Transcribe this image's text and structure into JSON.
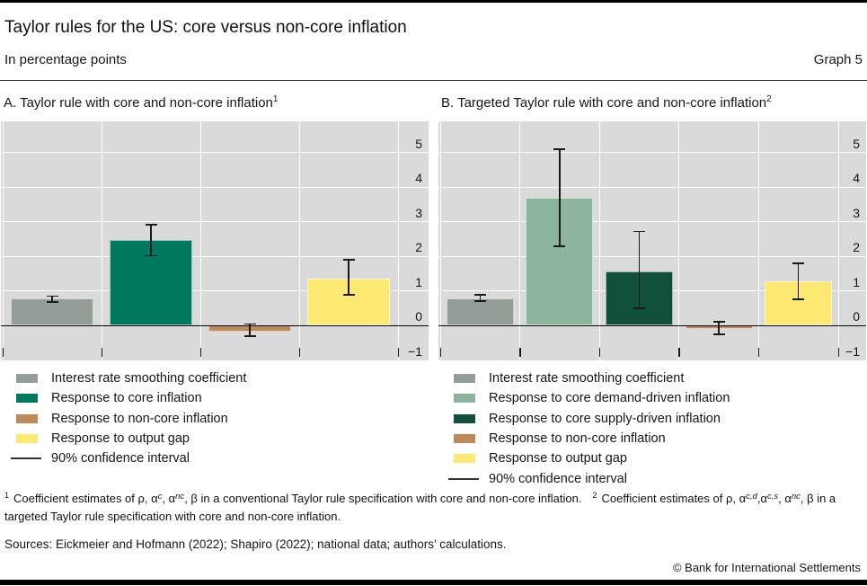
{
  "page": {
    "title": "Taylor rules for the US: core versus non-core inflation",
    "subtitle": "In percentage points",
    "graph_label": "Graph 5",
    "sources": "Sources: Eickmeier and Hofmann (2022); Shapiro (2022); national data; authors’ calculations.",
    "copyright": "© Bank for International Settlements"
  },
  "chart_data": [
    {
      "type": "bar",
      "panel": "A",
      "title": "A. Taylor rule with core and non-core inflation",
      "title_sup": "1",
      "ylabel": "percentage points",
      "ylim": [
        -1,
        5.9
      ],
      "yticks": [
        5,
        4,
        3,
        2,
        1,
        0,
        -1
      ],
      "ytick_labels": [
        "5",
        "4",
        "3",
        "2",
        "1",
        "0",
        "−1"
      ],
      "grid": true,
      "legend_position": "below",
      "ci_legend_label": "90% confidence interval",
      "series": [
        {
          "label": "Interest rate smoothing coefficient",
          "value": 0.78,
          "ci_low": 0.69,
          "ci_high": 0.86,
          "color": "#949e96"
        },
        {
          "label": "Response to core inflation",
          "value": 2.47,
          "ci_low": 2.02,
          "ci_high": 2.92,
          "color": "#01795f"
        },
        {
          "label": "Response to non-core inflation",
          "value": -0.16,
          "ci_low": -0.3,
          "ci_high": 0.05,
          "color": "#bf8a58"
        },
        {
          "label": "Response to output gap",
          "value": 1.37,
          "ci_low": 0.89,
          "ci_high": 1.91,
          "color": "#fde971"
        }
      ]
    },
    {
      "type": "bar",
      "panel": "B",
      "title": "B. Targeted Taylor rule with core and non-core inflation",
      "title_sup": "2",
      "ylabel": "percentage points",
      "ylim": [
        -1,
        5.9
      ],
      "yticks": [
        5,
        4,
        3,
        2,
        1,
        0,
        -1
      ],
      "ytick_labels": [
        "5",
        "4",
        "3",
        "2",
        "1",
        "0",
        "−1"
      ],
      "grid": true,
      "legend_position": "below",
      "ci_legend_label": "90% confidence interval",
      "series": [
        {
          "label": "Interest rate smoothing coefficient",
          "value": 0.8,
          "ci_low": 0.71,
          "ci_high": 0.89,
          "color": "#949e96"
        },
        {
          "label": "Response to core demand-driven inflation",
          "value": 3.69,
          "ci_low": 2.3,
          "ci_high": 5.1,
          "color": "#8db49c"
        },
        {
          "label": "Response to core supply-driven inflation",
          "value": 1.58,
          "ci_low": 0.5,
          "ci_high": 2.72,
          "color": "#11503a"
        },
        {
          "label": "Response to non-core inflation",
          "value": -0.1,
          "ci_low": -0.25,
          "ci_high": 0.12,
          "color": "#bf8a58"
        },
        {
          "label": "Response to output gap",
          "value": 1.28,
          "ci_low": 0.76,
          "ci_high": 1.8,
          "color": "#fde971"
        }
      ]
    }
  ],
  "footnotes": {
    "items": [
      {
        "marker": "1",
        "segments": [
          {
            "t": "Coefficient estimates of ρ, α"
          },
          {
            "t": "c",
            "sup": true
          },
          {
            "t": ", α"
          },
          {
            "t": "nc",
            "sup": true
          },
          {
            "t": ", β in a conventional Taylor rule specification with core and non-core inflation."
          }
        ]
      },
      {
        "marker": "2",
        "segments": [
          {
            "t": "Coefficient estimates of ρ, α"
          },
          {
            "t": "c,d",
            "sup": true
          },
          {
            "t": ",α"
          },
          {
            "t": "c,s",
            "sup": true
          },
          {
            "t": ", α"
          },
          {
            "t": "nc",
            "sup": true
          },
          {
            "t": ", β in a targeted Taylor rule specification with core and non-core inflation."
          }
        ]
      }
    ]
  }
}
